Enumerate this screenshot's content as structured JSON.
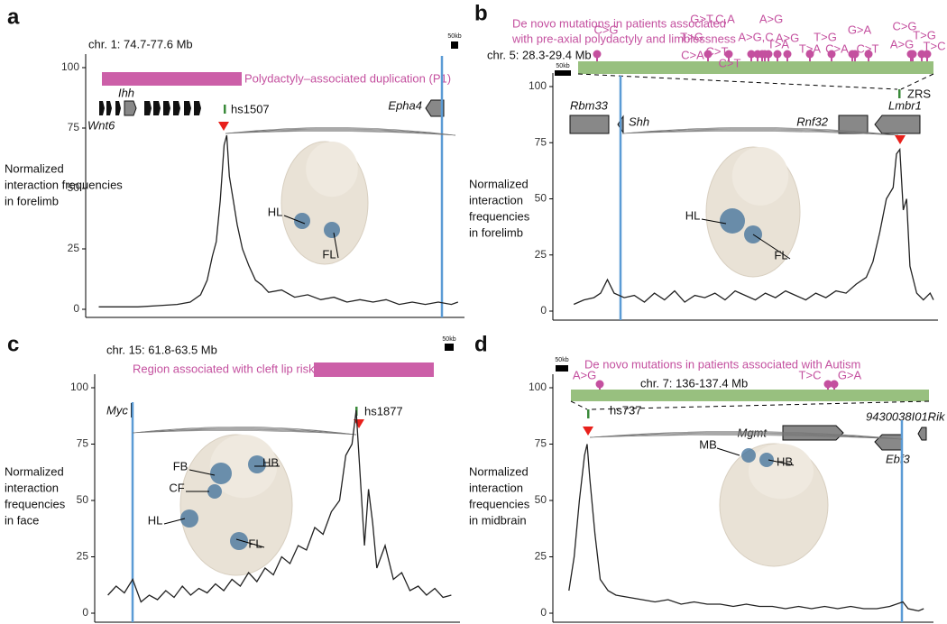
{
  "chart_data": [
    {
      "type": "line",
      "panel": "a",
      "region": "chr. 1: 74.7-77.6 Mb",
      "scale_bar": "50kb",
      "annotation": "Polydactyly–associated duplication (P1)",
      "genes": [
        "Ihh",
        "Wnt6",
        "Epha4"
      ],
      "enhancer": "hs1507",
      "ylabel": [
        "Normalized",
        "interaction frequencies",
        "in forelimb"
      ],
      "embryo_labels": [
        "HL",
        "FL"
      ],
      "color": "#222",
      "xlim": [
        74.7,
        77.6
      ],
      "ylim": [
        0,
        100
      ],
      "yticks": [
        0,
        25,
        50,
        75,
        100
      ],
      "x": [
        74.8,
        74.95,
        75.1,
        75.25,
        75.4,
        75.5,
        75.58,
        75.63,
        75.67,
        75.7,
        75.73,
        75.76,
        75.78,
        75.8,
        75.83,
        75.86,
        75.9,
        75.95,
        76.0,
        76.05,
        76.1,
        76.2,
        76.3,
        76.4,
        76.5,
        76.6,
        76.7,
        76.8,
        76.9,
        77.0,
        77.1,
        77.2,
        77.3,
        77.4,
        77.5,
        77.55
      ],
      "values": [
        1,
        1,
        1,
        1.5,
        2,
        3,
        6,
        12,
        22,
        28,
        45,
        68,
        72,
        55,
        45,
        35,
        25,
        18,
        12,
        10,
        7,
        8,
        5,
        6,
        4,
        5,
        3,
        4,
        3,
        4,
        2,
        3,
        2,
        3,
        2,
        3
      ]
    },
    {
      "type": "line",
      "panel": "b",
      "title": [
        "De novo mutations in patients associated",
        "with pre-axial polydactyly and limblessness"
      ],
      "region": "chr. 5: 28.3-29.4 Mb",
      "scale_bar": "50kb",
      "mutations": [
        "C>G",
        "C>A",
        "T>G",
        "G>T,C,A",
        "A>G,C",
        "C>T",
        "C>T",
        "A>G",
        "T>A",
        "A>G",
        "T>A",
        "C>A",
        "T>G",
        "G>A",
        "C>T",
        "A>G",
        "C>G",
        "T>G",
        "T>C"
      ],
      "genes": [
        "Rbm33",
        "Shh",
        "Rnf32",
        "Lmbr1"
      ],
      "enhancer": "ZRS",
      "ylabel": [
        "Normalized",
        "interaction",
        "frequencies",
        "in forelimb"
      ],
      "embryo_labels": [
        "HL",
        "FL"
      ],
      "color": "#222",
      "xlim": [
        28.3,
        29.4
      ],
      "ylim": [
        0,
        100
      ],
      "yticks": [
        0,
        25,
        50,
        75,
        100
      ],
      "x": [
        28.33,
        28.36,
        28.39,
        28.41,
        28.43,
        28.45,
        28.48,
        28.51,
        28.54,
        28.57,
        28.6,
        28.63,
        28.66,
        28.69,
        28.72,
        28.75,
        28.78,
        28.81,
        28.84,
        28.87,
        28.9,
        28.93,
        28.96,
        28.99,
        29.02,
        29.05,
        29.08,
        29.11,
        29.14,
        29.17,
        29.2,
        29.22,
        29.24,
        29.26,
        29.28,
        29.29,
        29.3,
        29.31,
        29.32,
        29.33,
        29.35,
        29.37,
        29.39,
        29.4
      ],
      "values": [
        3,
        5,
        6,
        8,
        14,
        8,
        6,
        7,
        4,
        8,
        5,
        9,
        4,
        7,
        6,
        8,
        5,
        9,
        7,
        5,
        8,
        6,
        9,
        7,
        5,
        8,
        6,
        9,
        8,
        12,
        15,
        22,
        35,
        50,
        55,
        70,
        72,
        45,
        50,
        20,
        8,
        5,
        8,
        5
      ]
    },
    {
      "type": "line",
      "panel": "c",
      "region": "chr. 15: 61.8-63.5 Mb",
      "scale_bar": "50kb",
      "annotation": "Region associated with cleft lip risk",
      "genes": [
        "Myc"
      ],
      "enhancer": "hs1877",
      "ylabel": [
        "Normalized",
        "interaction",
        "frequencies",
        "in face"
      ],
      "embryo_labels": [
        "FB",
        "HB",
        "CF",
        "HL",
        "FL"
      ],
      "color": "#222",
      "xlim": [
        61.8,
        63.5
      ],
      "ylim": [
        0,
        100
      ],
      "yticks": [
        0,
        25,
        50,
        75,
        100
      ],
      "x": [
        61.82,
        61.86,
        61.9,
        61.94,
        61.98,
        62.02,
        62.06,
        62.1,
        62.14,
        62.18,
        62.22,
        62.26,
        62.3,
        62.34,
        62.38,
        62.42,
        62.46,
        62.5,
        62.54,
        62.58,
        62.62,
        62.66,
        62.7,
        62.74,
        62.78,
        62.82,
        62.86,
        62.9,
        62.94,
        62.97,
        63.0,
        63.02,
        63.04,
        63.06,
        63.08,
        63.1,
        63.12,
        63.16,
        63.2,
        63.24,
        63.28,
        63.32,
        63.36,
        63.4,
        63.44,
        63.48
      ],
      "values": [
        8,
        12,
        9,
        15,
        5,
        8,
        6,
        10,
        7,
        12,
        8,
        11,
        9,
        13,
        10,
        15,
        12,
        18,
        14,
        20,
        17,
        25,
        22,
        30,
        28,
        38,
        35,
        45,
        50,
        70,
        75,
        90,
        60,
        30,
        55,
        40,
        20,
        30,
        15,
        18,
        10,
        12,
        8,
        11,
        7,
        8
      ]
    },
    {
      "type": "line",
      "panel": "d",
      "title": [
        "De novo mutations in patients associated with Autism"
      ],
      "region": "chr. 7: 136-137.4 Mb",
      "scale_bar": "50kb",
      "mutations": [
        "A>G",
        "T>C",
        "G>A"
      ],
      "genes": [
        "Mgmt",
        "9430038I01Rik",
        "Ebf3"
      ],
      "enhancer": "hs737",
      "ylabel": [
        "Normalized",
        "interaction",
        "frequencies",
        "in midbrain"
      ],
      "embryo_labels": [
        "MB",
        "HB"
      ],
      "color": "#222",
      "xlim": [
        136,
        137.4
      ],
      "ylim": [
        0,
        100
      ],
      "yticks": [
        0,
        25,
        50,
        75,
        100
      ],
      "x": [
        136.02,
        136.04,
        136.06,
        136.08,
        136.09,
        136.1,
        136.12,
        136.14,
        136.17,
        136.2,
        136.25,
        136.3,
        136.35,
        136.4,
        136.45,
        136.5,
        136.55,
        136.6,
        136.65,
        136.7,
        136.75,
        136.8,
        136.85,
        136.9,
        136.95,
        137.0,
        137.05,
        137.1,
        137.15,
        137.2,
        137.25,
        137.3,
        137.32,
        137.36,
        137.38
      ],
      "values": [
        10,
        25,
        50,
        70,
        75,
        60,
        35,
        15,
        10,
        8,
        7,
        6,
        5,
        6,
        4,
        5,
        4,
        4,
        3,
        4,
        3,
        3,
        2,
        3,
        2,
        3,
        2,
        3,
        2,
        2,
        3,
        5,
        2,
        1,
        2
      ]
    }
  ]
}
